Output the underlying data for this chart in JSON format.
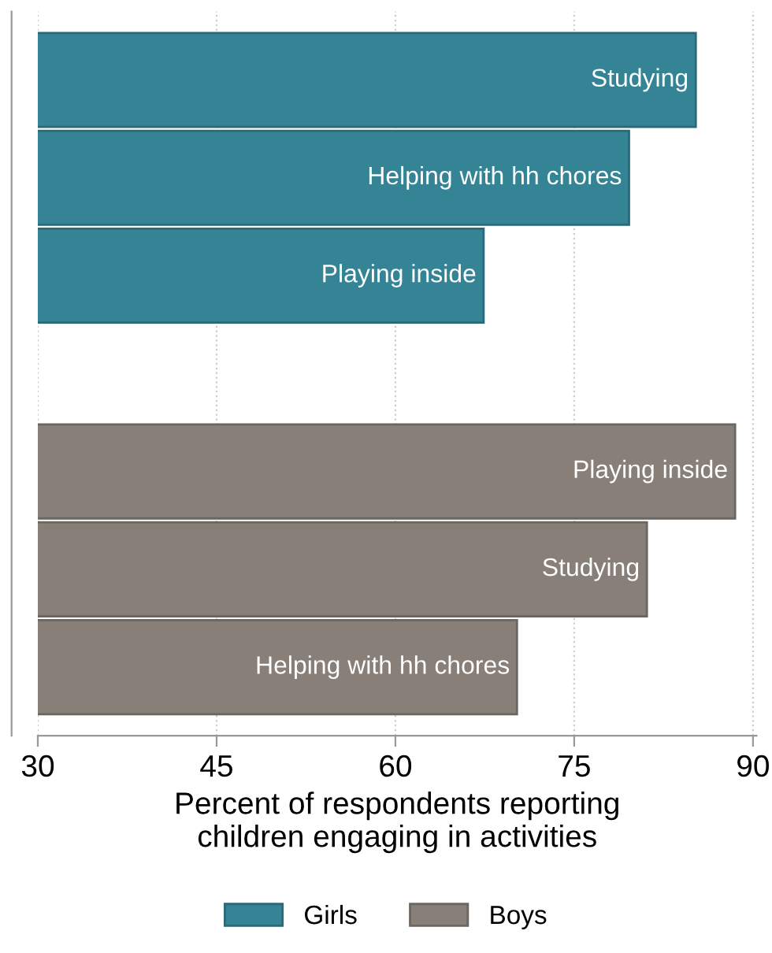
{
  "chart_data": {
    "type": "bar",
    "orientation": "horizontal",
    "xlabel": "Percent of respondents reporting\nchildren engaging in activities",
    "categories": [
      "Studying",
      "Helping with hh chores",
      "Playing inside",
      null,
      "Playing inside",
      "Studying",
      "Helping with hh chores"
    ],
    "series": [
      {
        "name": "Girls",
        "color": "#348496",
        "values": [
          85.2,
          79.6,
          67.4,
          null,
          null,
          null,
          null
        ]
      },
      {
        "name": "Boys",
        "color": "#877f78",
        "values": [
          null,
          null,
          null,
          null,
          88.5,
          81.1,
          70.2
        ]
      }
    ],
    "xlim": [
      30,
      90.3
    ],
    "xticks": [
      30,
      45,
      60,
      75,
      90
    ],
    "grid": "x",
    "legend": "bottom",
    "tick_labels": "x"
  }
}
